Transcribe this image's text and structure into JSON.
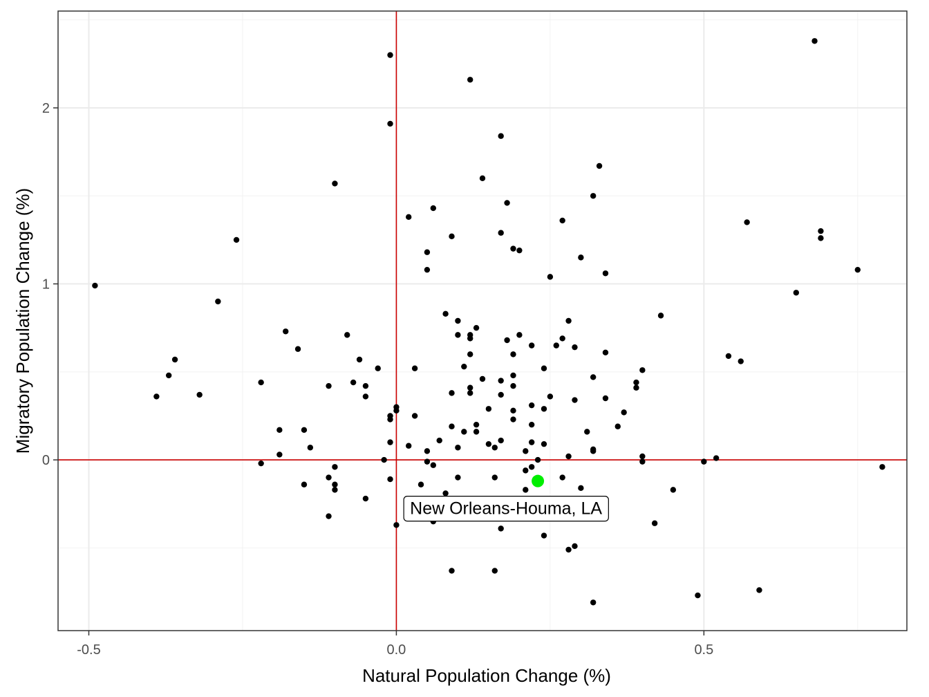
{
  "chart_data": {
    "type": "scatter",
    "xlabel": "Natural Population Change (%)",
    "ylabel": "Migratory Population Change (%)",
    "xlim": [
      -0.55,
      0.83
    ],
    "ylim": [
      -0.97,
      2.55
    ],
    "x_ticks": [
      {
        "value": -0.5,
        "label": "-0.5"
      },
      {
        "value": 0.0,
        "label": "0.0"
      },
      {
        "value": 0.5,
        "label": "0.5"
      }
    ],
    "y_ticks": [
      {
        "value": 0,
        "label": "0"
      },
      {
        "value": 1,
        "label": "1"
      },
      {
        "value": 2,
        "label": "2"
      }
    ],
    "grid": true,
    "reference_lines": {
      "x": 0,
      "y": 0,
      "color": "#cc0000"
    },
    "point_color": "#000000",
    "highlight": {
      "x": 0.23,
      "y": -0.12,
      "label": "New Orleans-Houma, LA",
      "color": "#00ee00"
    },
    "points": [
      [
        -0.49,
        0.99
      ],
      [
        -0.39,
        0.36
      ],
      [
        -0.37,
        0.48
      ],
      [
        -0.36,
        0.57
      ],
      [
        -0.32,
        0.37
      ],
      [
        -0.29,
        0.9
      ],
      [
        -0.26,
        1.25
      ],
      [
        -0.22,
        0.44
      ],
      [
        -0.22,
        -0.02
      ],
      [
        -0.19,
        0.17
      ],
      [
        -0.19,
        0.03
      ],
      [
        -0.18,
        0.73
      ],
      [
        -0.16,
        0.63
      ],
      [
        -0.15,
        0.17
      ],
      [
        -0.15,
        -0.14
      ],
      [
        -0.14,
        0.07
      ],
      [
        -0.11,
        0.42
      ],
      [
        -0.11,
        -0.1
      ],
      [
        -0.11,
        -0.32
      ],
      [
        -0.1,
        1.57
      ],
      [
        -0.1,
        -0.04
      ],
      [
        -0.1,
        -0.14
      ],
      [
        -0.1,
        -0.17
      ],
      [
        -0.08,
        0.71
      ],
      [
        -0.07,
        0.44
      ],
      [
        -0.06,
        0.57
      ],
      [
        -0.05,
        0.42
      ],
      [
        -0.05,
        0.36
      ],
      [
        -0.05,
        -0.22
      ],
      [
        -0.03,
        0.52
      ],
      [
        -0.02,
        0.0
      ],
      [
        -0.01,
        2.3
      ],
      [
        -0.01,
        1.91
      ],
      [
        -0.01,
        0.25
      ],
      [
        -0.01,
        0.23
      ],
      [
        -0.01,
        0.1
      ],
      [
        -0.01,
        -0.11
      ],
      [
        0.0,
        0.3
      ],
      [
        0.0,
        0.28
      ],
      [
        0.0,
        -0.37
      ],
      [
        0.02,
        1.38
      ],
      [
        0.02,
        0.08
      ],
      [
        0.03,
        0.52
      ],
      [
        0.03,
        0.25
      ],
      [
        0.04,
        -0.14
      ],
      [
        0.05,
        1.18
      ],
      [
        0.05,
        1.08
      ],
      [
        0.05,
        0.05
      ],
      [
        0.05,
        -0.01
      ],
      [
        0.06,
        1.43
      ],
      [
        0.06,
        -0.03
      ],
      [
        0.06,
        -0.35
      ],
      [
        0.07,
        0.11
      ],
      [
        0.08,
        0.83
      ],
      [
        0.08,
        -0.19
      ],
      [
        0.09,
        1.27
      ],
      [
        0.09,
        0.38
      ],
      [
        0.09,
        0.19
      ],
      [
        0.09,
        -0.63
      ],
      [
        0.1,
        0.79
      ],
      [
        0.1,
        0.71
      ],
      [
        0.1,
        0.07
      ],
      [
        0.1,
        -0.1
      ],
      [
        0.11,
        0.53
      ],
      [
        0.11,
        0.16
      ],
      [
        0.12,
        2.16
      ],
      [
        0.12,
        0.71
      ],
      [
        0.12,
        0.69
      ],
      [
        0.12,
        0.6
      ],
      [
        0.12,
        0.41
      ],
      [
        0.12,
        0.38
      ],
      [
        0.13,
        0.75
      ],
      [
        0.13,
        0.2
      ],
      [
        0.13,
        0.16
      ],
      [
        0.14,
        1.6
      ],
      [
        0.14,
        0.46
      ],
      [
        0.15,
        0.29
      ],
      [
        0.15,
        0.09
      ],
      [
        0.16,
        0.07
      ],
      [
        0.16,
        -0.1
      ],
      [
        0.16,
        -0.63
      ],
      [
        0.17,
        1.84
      ],
      [
        0.17,
        1.29
      ],
      [
        0.17,
        0.45
      ],
      [
        0.17,
        0.37
      ],
      [
        0.17,
        0.11
      ],
      [
        0.17,
        -0.39
      ],
      [
        0.18,
        1.46
      ],
      [
        0.18,
        0.68
      ],
      [
        0.19,
        1.2
      ],
      [
        0.19,
        0.6
      ],
      [
        0.19,
        0.48
      ],
      [
        0.19,
        0.42
      ],
      [
        0.19,
        0.28
      ],
      [
        0.19,
        0.23
      ],
      [
        0.2,
        1.19
      ],
      [
        0.2,
        0.71
      ],
      [
        0.21,
        0.05
      ],
      [
        0.21,
        -0.06
      ],
      [
        0.21,
        -0.17
      ],
      [
        0.22,
        0.65
      ],
      [
        0.22,
        0.31
      ],
      [
        0.22,
        0.2
      ],
      [
        0.22,
        0.1
      ],
      [
        0.22,
        -0.04
      ],
      [
        0.23,
        0.0
      ],
      [
        0.24,
        0.52
      ],
      [
        0.24,
        0.29
      ],
      [
        0.24,
        0.09
      ],
      [
        0.24,
        -0.43
      ],
      [
        0.25,
        1.04
      ],
      [
        0.25,
        0.36
      ],
      [
        0.26,
        0.65
      ],
      [
        0.27,
        1.36
      ],
      [
        0.27,
        0.69
      ],
      [
        0.27,
        -0.1
      ],
      [
        0.28,
        0.79
      ],
      [
        0.28,
        0.02
      ],
      [
        0.28,
        -0.51
      ],
      [
        0.29,
        0.64
      ],
      [
        0.29,
        0.34
      ],
      [
        0.29,
        -0.49
      ],
      [
        0.3,
        1.15
      ],
      [
        0.3,
        -0.16
      ],
      [
        0.31,
        0.16
      ],
      [
        0.32,
        1.5
      ],
      [
        0.32,
        0.47
      ],
      [
        0.32,
        0.06
      ],
      [
        0.32,
        0.05
      ],
      [
        0.32,
        -0.81
      ],
      [
        0.33,
        1.67
      ],
      [
        0.34,
        1.06
      ],
      [
        0.34,
        0.61
      ],
      [
        0.34,
        0.35
      ],
      [
        0.36,
        0.19
      ],
      [
        0.37,
        0.27
      ],
      [
        0.39,
        0.44
      ],
      [
        0.39,
        0.41
      ],
      [
        0.4,
        0.51
      ],
      [
        0.4,
        0.02
      ],
      [
        0.4,
        -0.01
      ],
      [
        0.42,
        -0.36
      ],
      [
        0.43,
        0.82
      ],
      [
        0.45,
        -0.17
      ],
      [
        0.49,
        -0.77
      ],
      [
        0.5,
        -0.01
      ],
      [
        0.52,
        0.01
      ],
      [
        0.54,
        0.59
      ],
      [
        0.56,
        0.56
      ],
      [
        0.57,
        1.35
      ],
      [
        0.59,
        -0.74
      ],
      [
        0.65,
        0.95
      ],
      [
        0.68,
        2.38
      ],
      [
        0.69,
        1.3
      ],
      [
        0.69,
        1.26
      ],
      [
        0.75,
        1.08
      ],
      [
        0.79,
        -0.04
      ]
    ]
  }
}
